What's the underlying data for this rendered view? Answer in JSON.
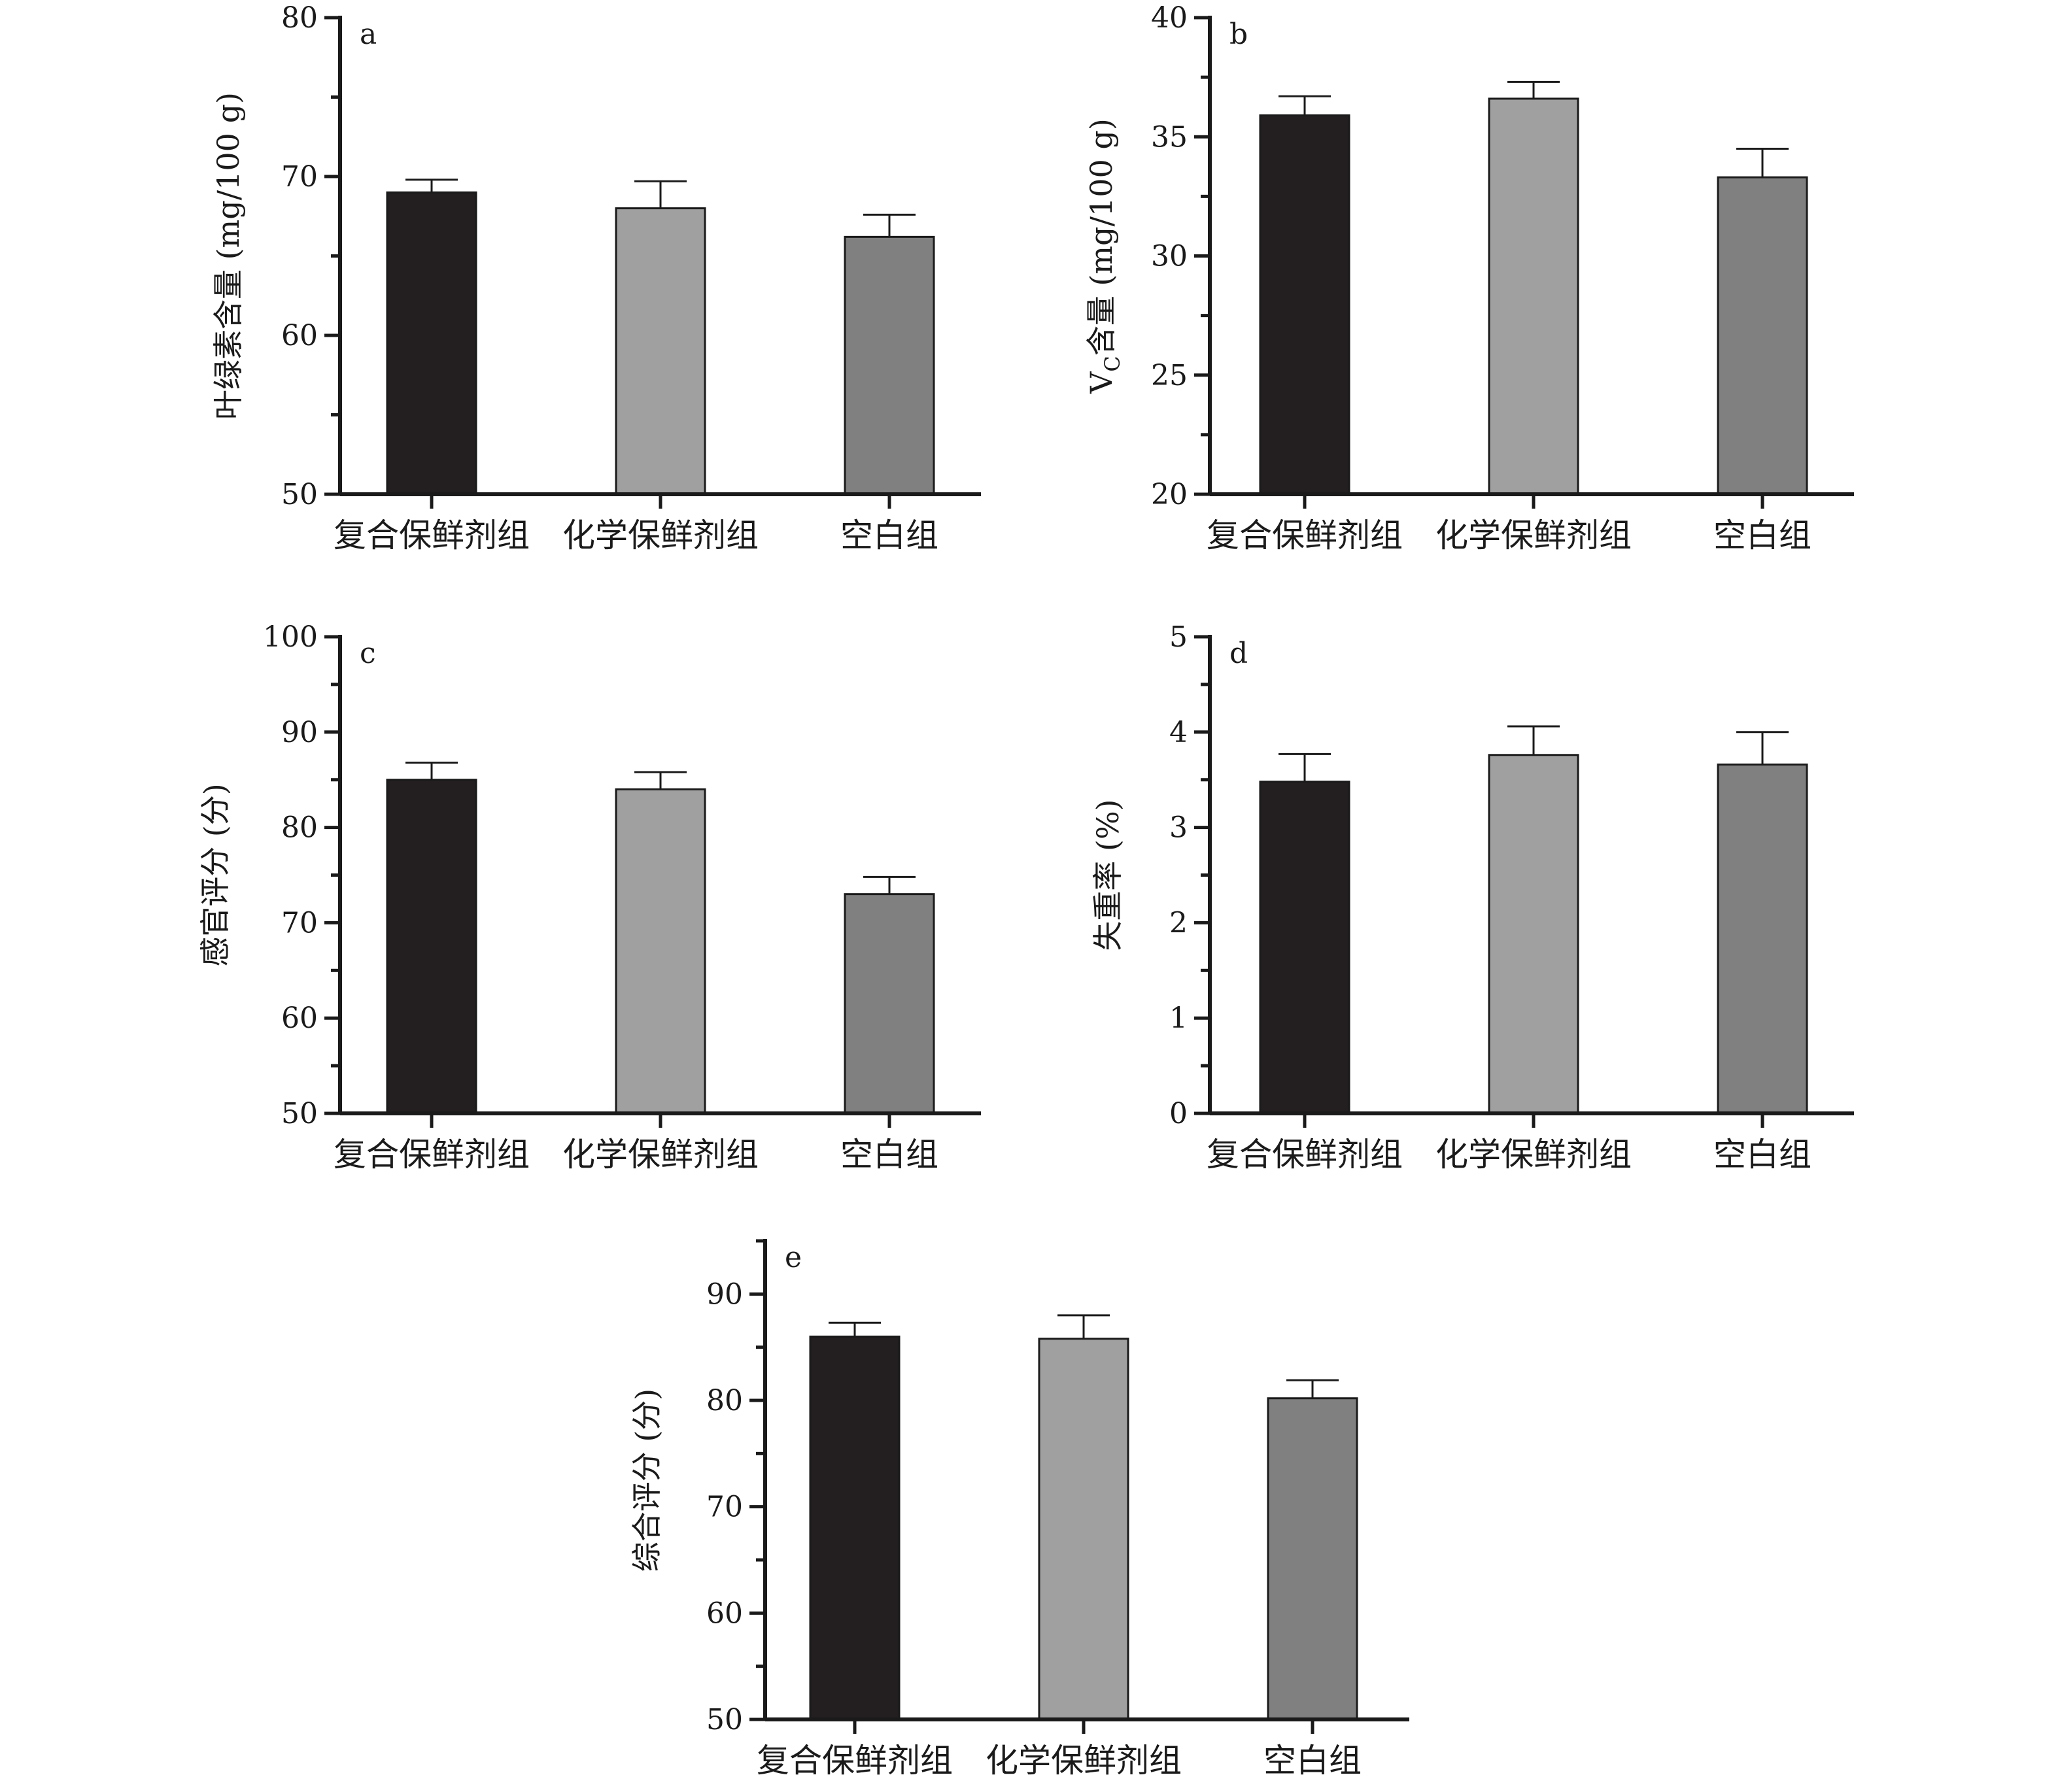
{
  "chart_data": [
    {
      "panel": "a",
      "type": "bar",
      "categories": [
        "复合保鲜剂组",
        "化学保鲜剂组",
        "空白组"
      ],
      "values": [
        69.0,
        68.0,
        66.2
      ],
      "errors": [
        0.8,
        1.7,
        1.4
      ],
      "ylabel": "叶绿素含量 (mg/100 g)",
      "ylim": [
        50,
        80
      ],
      "yticks": [
        50,
        60,
        70,
        80
      ],
      "minor_step": 5
    },
    {
      "panel": "b",
      "type": "bar",
      "categories": [
        "复合保鲜剂组",
        "化学保鲜剂组",
        "空白组"
      ],
      "values": [
        35.9,
        36.6,
        33.3
      ],
      "errors": [
        0.8,
        0.7,
        1.2
      ],
      "ylabel_main": "V",
      "ylabel_sub": "C",
      "ylabel_rest": "含量 (mg/100 g)",
      "ylim": [
        20,
        40
      ],
      "yticks": [
        20,
        25,
        30,
        35,
        40
      ],
      "minor_step": 2.5
    },
    {
      "panel": "c",
      "type": "bar",
      "categories": [
        "复合保鲜剂组",
        "化学保鲜剂组",
        "空白组"
      ],
      "values": [
        85.0,
        84.0,
        73.0
      ],
      "errors": [
        1.8,
        1.8,
        1.8
      ],
      "ylabel": "感官评分 (分)",
      "ylim": [
        50,
        100
      ],
      "yticks": [
        50,
        60,
        70,
        80,
        90,
        100
      ],
      "minor_step": 5
    },
    {
      "panel": "d",
      "type": "bar",
      "categories": [
        "复合保鲜剂组",
        "化学保鲜剂组",
        "空白组"
      ],
      "values": [
        3.48,
        3.76,
        3.66
      ],
      "errors": [
        0.29,
        0.3,
        0.34
      ],
      "ylabel": "失重率 (%)",
      "ylim": [
        0,
        5
      ],
      "yticks": [
        0,
        1,
        2,
        3,
        4,
        5
      ],
      "minor_step": 0.5
    },
    {
      "panel": "e",
      "type": "bar",
      "categories": [
        "复合保鲜剂组",
        "化学保鲜剂组",
        "空白组"
      ],
      "values": [
        86.0,
        85.8,
        80.2
      ],
      "errors": [
        1.3,
        2.2,
        1.7
      ],
      "ylabel": "综合评分 (分)",
      "ylim": [
        50,
        95
      ],
      "yticks": [
        50,
        60,
        70,
        80,
        90
      ],
      "minor_step": 5
    }
  ],
  "colors": {
    "bars": [
      "#231f20",
      "#a0a0a0",
      "#808080"
    ],
    "axis": "#1a1a1a"
  }
}
